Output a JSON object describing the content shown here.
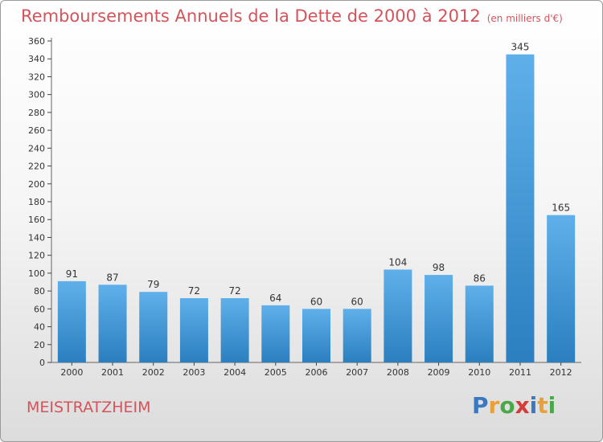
{
  "header": {
    "title": "Remboursements Annuels de la Dette de 2000 à 2012",
    "subtitle": "(en milliers d'€)"
  },
  "footer": {
    "commune": "MEISTRATZHEIM",
    "logo_text": "Proxiti",
    "logo_colors": [
      "#3a78c2",
      "#e8a03a",
      "#4aa84a",
      "#d43c3c",
      "#3a78c2",
      "#e8a03a",
      "#4aa84a"
    ]
  },
  "colors": {
    "accent": "#d4545b",
    "bar_top": "#5fb0ea",
    "bar_bottom": "#2b7fbf",
    "axis": "#666666",
    "grid_tick": "#444444"
  },
  "chart_data": {
    "type": "bar",
    "title": "Remboursements Annuels de la Dette de 2000 à 2012",
    "subtitle": "(en milliers d'€)",
    "categories": [
      "2000",
      "2001",
      "2002",
      "2003",
      "2004",
      "2005",
      "2006",
      "2007",
      "2008",
      "2009",
      "2010",
      "2011",
      "2012"
    ],
    "values": [
      91,
      87,
      79,
      72,
      72,
      64,
      60,
      60,
      104,
      98,
      86,
      345,
      165
    ],
    "ylim": [
      0,
      360
    ],
    "ytick_step": 20,
    "grid": false,
    "data_labels": true
  }
}
